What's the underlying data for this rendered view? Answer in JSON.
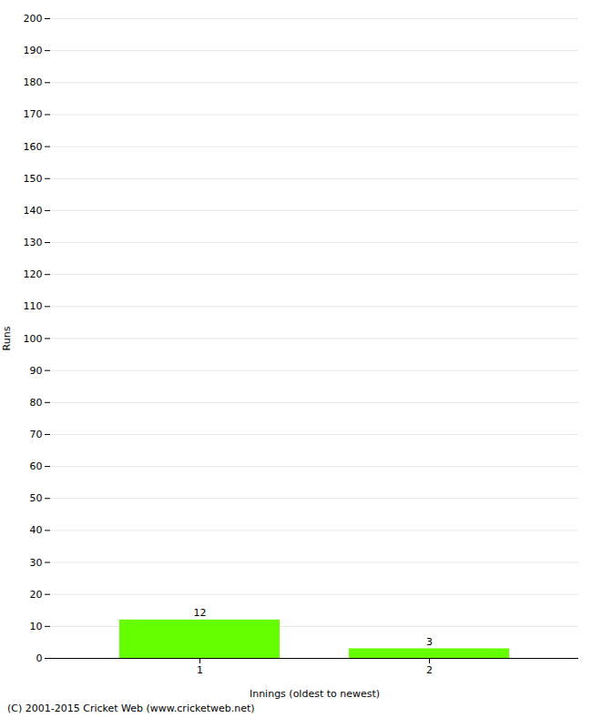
{
  "chart_data": {
    "type": "bar",
    "categories": [
      "1",
      "2"
    ],
    "values": [
      12,
      3
    ],
    "color": "#66ff00",
    "xlabel": "Innings (oldest to newest)",
    "ylabel": "Runs",
    "ylim": [
      0,
      200
    ],
    "yticks": [
      0,
      10,
      20,
      30,
      40,
      50,
      60,
      70,
      80,
      90,
      100,
      110,
      120,
      130,
      140,
      150,
      160,
      170,
      180,
      190,
      200
    ],
    "grid": true,
    "data_labels": true,
    "annotations": [
      "(C) 2001-2015 Cricket Web (www.cricketweb.net)"
    ]
  }
}
